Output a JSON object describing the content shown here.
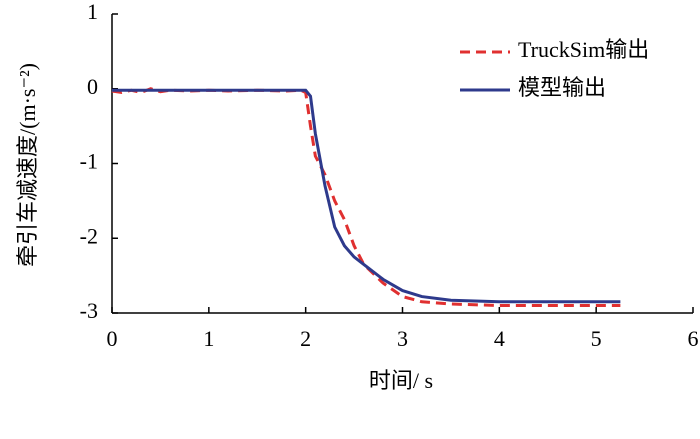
{
  "chart_data": {
    "type": "line",
    "x_label": "时间/ s",
    "y_label": "牵引车减速度/(m·s⁻²)",
    "xlim": [
      0,
      6
    ],
    "xticks": [
      0,
      1,
      2,
      3,
      4,
      5,
      6
    ],
    "ylim": [
      -3,
      1
    ],
    "yticks": [
      1,
      0,
      -1,
      -2,
      -3
    ],
    "legend": "upper right",
    "series": [
      {
        "name": "TruckSim输出",
        "color": "#e03030",
        "dash": true,
        "x": [
          0,
          0.1,
          0.2,
          0.3,
          0.4,
          0.5,
          0.6,
          0.8,
          1.0,
          1.2,
          1.5,
          1.8,
          1.95,
          2.0,
          2.05,
          2.1,
          2.2,
          2.3,
          2.4,
          2.5,
          2.6,
          2.8,
          3.0,
          3.2,
          3.5,
          4.0,
          4.5,
          5.25
        ],
        "values": [
          -0.03,
          -0.05,
          -0.02,
          -0.05,
          0.0,
          -0.04,
          -0.02,
          -0.03,
          -0.02,
          -0.03,
          -0.02,
          -0.03,
          -0.02,
          -0.05,
          -0.5,
          -0.9,
          -1.15,
          -1.5,
          -1.75,
          -2.1,
          -2.35,
          -2.6,
          -2.78,
          -2.85,
          -2.88,
          -2.9,
          -2.9,
          -2.9
        ]
      },
      {
        "name": "模型输出",
        "color": "#2e3a8c",
        "dash": false,
        "x": [
          0,
          0.2,
          0.5,
          1.0,
          1.5,
          2.0,
          2.05,
          2.1,
          2.2,
          2.3,
          2.4,
          2.5,
          2.6,
          2.8,
          3.0,
          3.2,
          3.5,
          4.0,
          4.5,
          5.25
        ],
        "values": [
          -0.02,
          -0.02,
          -0.02,
          -0.02,
          -0.02,
          -0.02,
          -0.1,
          -0.6,
          -1.3,
          -1.85,
          -2.1,
          -2.25,
          -2.35,
          -2.55,
          -2.7,
          -2.78,
          -2.83,
          -2.85,
          -2.85,
          -2.85
        ]
      }
    ]
  }
}
